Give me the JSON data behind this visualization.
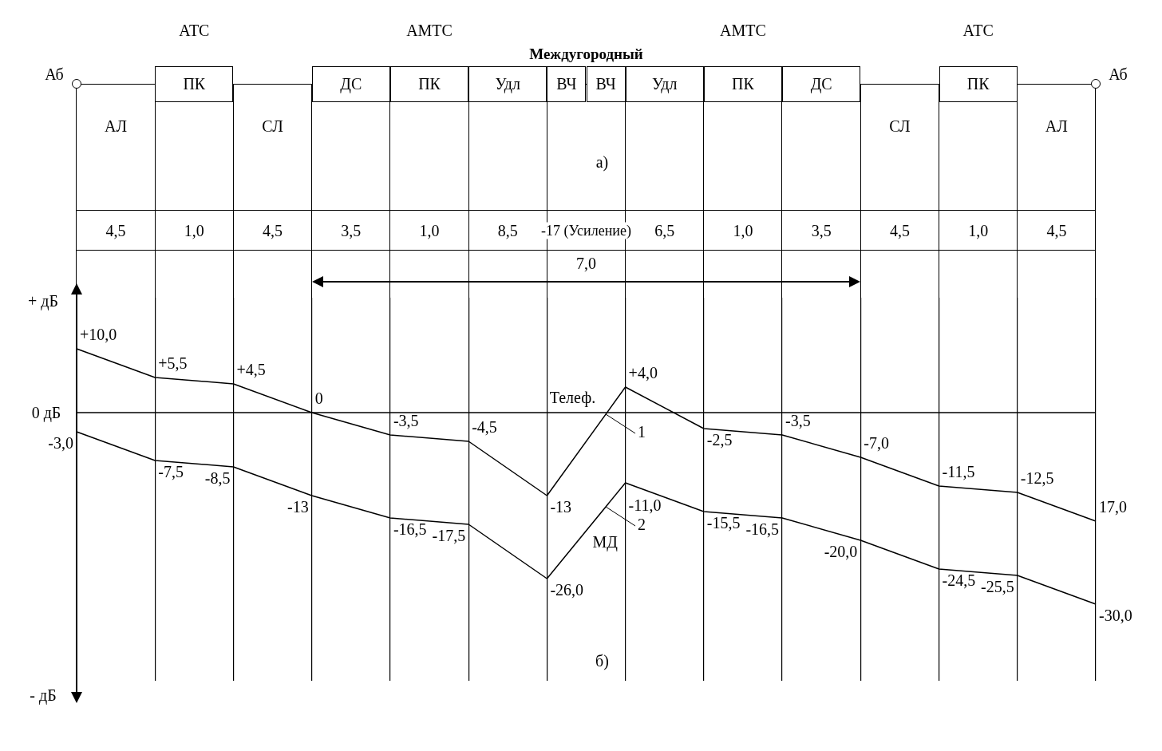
{
  "chart_data": {
    "type": "line",
    "categories": [
      null,
      null,
      null,
      null,
      null,
      null,
      null,
      null,
      null,
      null,
      null,
      null,
      null,
      null
    ],
    "series": [
      {
        "name": "Телеф.",
        "color": "#000000",
        "values": [
          10,
          5.5,
          4.5,
          0,
          -3.5,
          -4.5,
          -13,
          4,
          -2.5,
          -3.5,
          -7,
          -11.5,
          -12.5,
          -17
        ],
        "value_labels": [
          "+10,0",
          "+5,5",
          "+4,5",
          "0",
          "-3,5",
          "-4,5",
          "-13",
          "+4,0",
          "-2,5",
          "-3,5",
          "-7,0",
          "-11,5",
          "-12,5",
          null
        ]
      },
      {
        "name": "МД",
        "color": "#000000",
        "values": [
          -3,
          -7.5,
          -8.5,
          -13,
          -16.5,
          -17.5,
          -26,
          -11,
          -15.5,
          -16.5,
          -20,
          -24.5,
          -25.5,
          -30
        ],
        "value_labels": [
          "-3,0",
          "-7,5",
          "-8,5",
          "-13",
          "-16,5",
          "-17,5",
          "-26,0",
          "-11,0",
          "-15,5",
          "-16,5",
          "-20,0",
          "-24,5",
          "-25,5",
          "-30,0"
        ]
      }
    ],
    "ref_lines": [
      {
        "axis": "y",
        "value": 0
      }
    ],
    "grid": "x",
    "annotations": [
      "Аб",
      "АТС",
      "АМТС",
      "Междугородный",
      "АМТС",
      "АТС",
      "Аб",
      "ПК",
      "ДС",
      "ПК",
      "Удл",
      "ВЧ",
      "ВЧ",
      "Удл",
      "ПК",
      "ДС",
      "ПК",
      "АЛ",
      "СЛ",
      "а)",
      "СЛ",
      "АЛ",
      "4,5",
      "1,0",
      "4,5",
      "3,5",
      "1,0",
      "8,5",
      "-17 (Усиление)",
      "6,5",
      "1,0",
      "3,5",
      "4,5",
      "1,0",
      "4,5",
      "7,0",
      "+ дБ",
      "- дБ",
      "1",
      "2",
      "б)",
      "0 дБ",
      "17,0"
    ]
  }
}
